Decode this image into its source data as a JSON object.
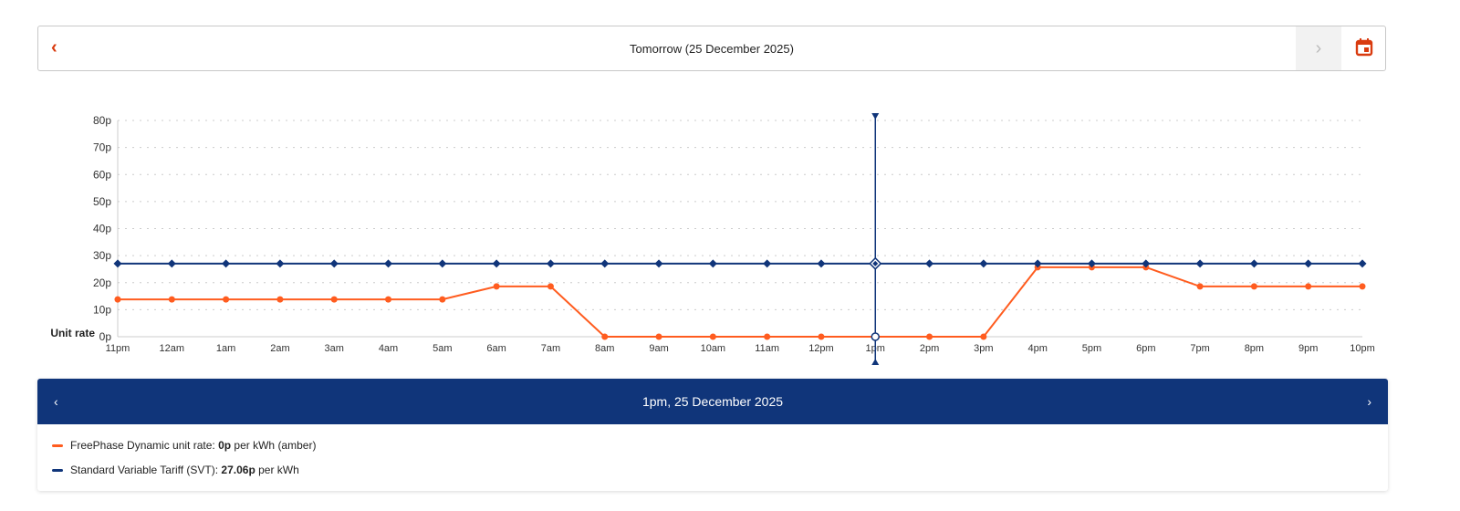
{
  "header": {
    "title": "Tomorrow (25 December 2025)",
    "prev": "‹",
    "next": "›"
  },
  "tooltip": {
    "title": "1pm, 25 December 2025",
    "prev": "‹",
    "next": "›",
    "rows": [
      {
        "label": "FreePhase Dynamic unit rate: ",
        "value": "0p",
        "suffix": " per kWh (amber)"
      },
      {
        "label": "Standard Variable Tariff (SVT): ",
        "value": "27.06p",
        "suffix": " per kWh"
      }
    ]
  },
  "colors": {
    "freephase": "#ff5c1f",
    "svt": "#10357a",
    "accent": "#d93b0f"
  },
  "chart_data": {
    "type": "line",
    "ylabel": "Unit rate",
    "ylim": [
      0,
      80
    ],
    "yticks": [
      "0p",
      "10p",
      "20p",
      "30p",
      "40p",
      "50p",
      "60p",
      "70p",
      "80p"
    ],
    "x": [
      "11pm",
      "12am",
      "1am",
      "2am",
      "3am",
      "4am",
      "5am",
      "6am",
      "7am",
      "8am",
      "9am",
      "10am",
      "11am",
      "12pm",
      "1pm",
      "2pm",
      "3pm",
      "4pm",
      "5pm",
      "6pm",
      "7pm",
      "8pm",
      "9pm",
      "10pm"
    ],
    "series": [
      {
        "name": "FreePhase Dynamic",
        "values": [
          13.8,
          13.8,
          13.8,
          13.8,
          13.8,
          13.8,
          13.8,
          18.6,
          18.6,
          0,
          0,
          0,
          0,
          0,
          0,
          0,
          0,
          25.7,
          25.7,
          25.7,
          18.6,
          18.6,
          18.6,
          18.6
        ]
      },
      {
        "name": "Standard Variable Tariff (SVT)",
        "values": [
          27.06,
          27.06,
          27.06,
          27.06,
          27.06,
          27.06,
          27.06,
          27.06,
          27.06,
          27.06,
          27.06,
          27.06,
          27.06,
          27.06,
          27.06,
          27.06,
          27.06,
          27.06,
          27.06,
          27.06,
          27.06,
          27.06,
          27.06,
          27.06
        ]
      }
    ],
    "selected": "1pm",
    "grid": true
  }
}
